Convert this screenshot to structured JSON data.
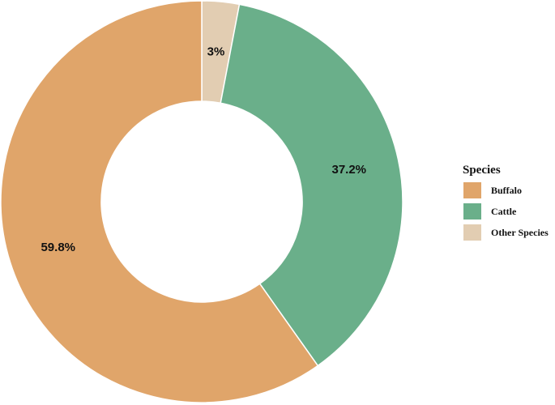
{
  "chart_data": {
    "type": "pie",
    "style": "donut",
    "title": "",
    "categories": [
      "Buffalo",
      "Cattle",
      "Other Species"
    ],
    "values": [
      59.8,
      37.2,
      3
    ],
    "labels": [
      "59.8%",
      "37.2%",
      "3%"
    ],
    "colors": [
      "#E0A56A",
      "#6AAF8A",
      "#E2CDB2"
    ],
    "legend": {
      "title": "Species",
      "placement": "right"
    }
  }
}
